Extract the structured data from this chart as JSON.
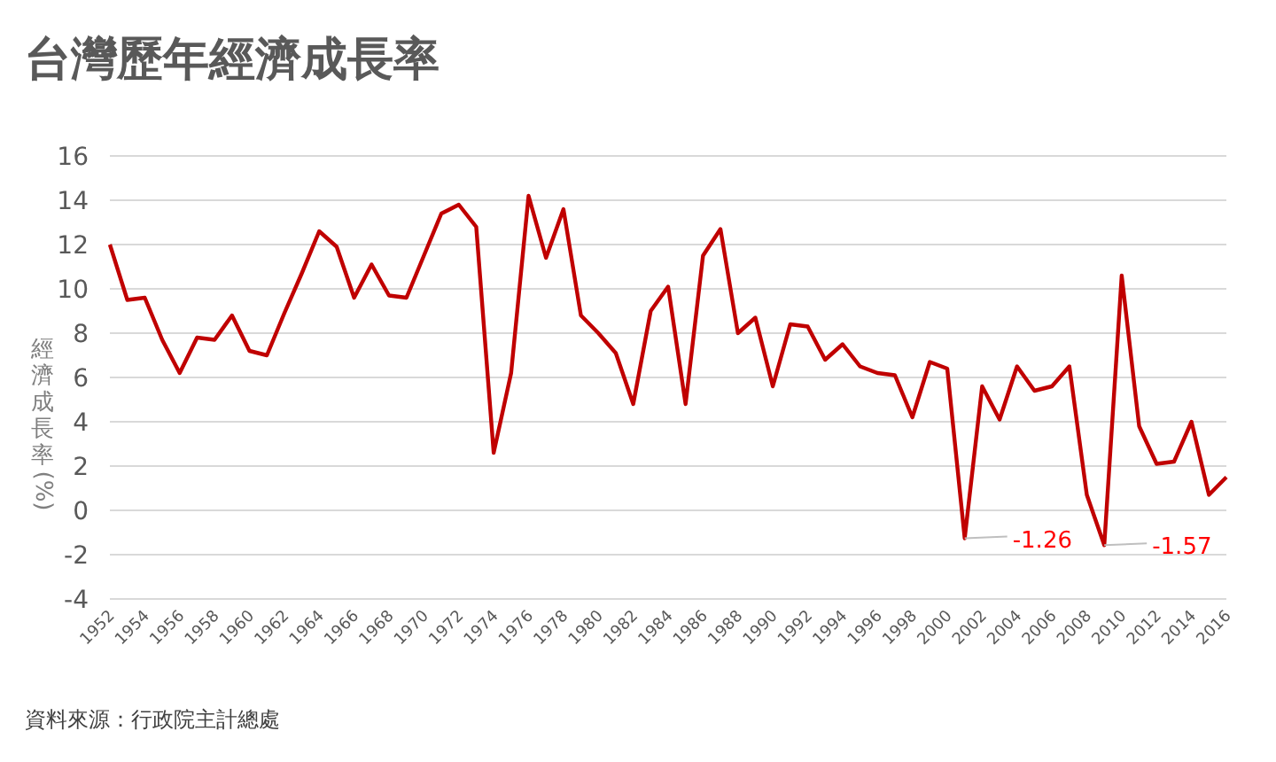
{
  "chart_data": {
    "type": "line",
    "title": "台灣歷年經濟成長率",
    "ylabel": "經濟成長率 (%)",
    "categories": [
      "1952",
      null,
      "1954",
      null,
      "1956",
      null,
      "1958",
      null,
      "1960",
      null,
      "1962",
      null,
      "1964",
      null,
      "1966",
      null,
      "1968",
      null,
      "1970",
      null,
      "1972",
      null,
      "1974",
      null,
      "1976",
      null,
      "1978",
      null,
      "1980",
      null,
      "1982",
      null,
      "1984",
      null,
      "1986",
      null,
      "1988",
      null,
      "1990",
      null,
      "1992",
      null,
      "1994",
      null,
      "1996",
      null,
      "1998",
      null,
      "2000",
      null,
      "2002",
      null,
      "2004",
      null,
      "2006",
      null,
      "2008",
      null,
      "2010",
      null,
      "2012",
      null,
      "2014",
      null,
      "2016"
    ],
    "series": [
      {
        "color": "#c00000",
        "values": [
          12.0,
          9.5,
          9.6,
          7.7,
          6.2,
          7.8,
          7.7,
          8.8,
          7.2,
          7.0,
          8.9,
          10.7,
          12.6,
          11.9,
          9.6,
          11.1,
          9.7,
          9.6,
          11.5,
          13.4,
          13.8,
          12.8,
          2.6,
          6.2,
          14.2,
          11.4,
          13.6,
          8.8,
          8.0,
          7.1,
          4.8,
          9.0,
          10.1,
          4.8,
          11.5,
          12.7,
          8.0,
          8.7,
          5.6,
          8.4,
          8.3,
          6.8,
          7.5,
          6.5,
          6.2,
          6.1,
          4.2,
          6.7,
          6.4,
          -1.26,
          5.6,
          4.1,
          6.5,
          5.4,
          5.6,
          6.5,
          0.7,
          -1.57,
          10.6,
          3.8,
          2.1,
          2.2,
          4.0,
          0.7,
          1.5
        ],
        "value_labels": [
          null,
          null,
          null,
          null,
          null,
          null,
          null,
          null,
          null,
          null,
          null,
          null,
          null,
          null,
          null,
          null,
          null,
          null,
          null,
          null,
          null,
          null,
          null,
          null,
          null,
          null,
          null,
          null,
          null,
          null,
          null,
          null,
          null,
          null,
          null,
          null,
          null,
          null,
          null,
          null,
          null,
          null,
          null,
          null,
          null,
          null,
          null,
          null,
          null,
          "-1.26",
          null,
          null,
          null,
          null,
          null,
          null,
          null,
          "-1.57",
          null,
          null,
          null,
          null,
          null,
          null,
          null
        ]
      }
    ],
    "ylim": [
      -4,
      16
    ],
    "yticks": [
      -4,
      -2,
      0,
      2,
      4,
      6,
      8,
      10,
      12,
      14,
      16
    ],
    "grid": "y",
    "marker": "none",
    "line_style": "solid",
    "annotations": [
      "資料來源：行政院主計總處"
    ]
  }
}
